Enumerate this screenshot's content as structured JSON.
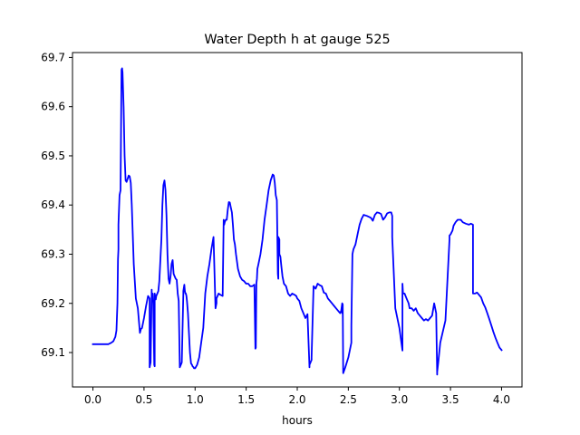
{
  "chart_data": {
    "type": "line",
    "title": "Water Depth h at gauge 525",
    "xlabel": "hours",
    "ylabel": "",
    "xlim": [
      -0.2,
      4.2
    ],
    "ylim": [
      69.03,
      69.71
    ],
    "xticks": [
      0.0,
      0.5,
      1.0,
      1.5,
      2.0,
      2.5,
      3.0,
      3.5,
      4.0
    ],
    "xtick_labels": [
      "0.0",
      "0.5",
      "1.0",
      "1.5",
      "2.0",
      "2.5",
      "3.0",
      "3.5",
      "4.0"
    ],
    "yticks": [
      69.1,
      69.2,
      69.3,
      69.4,
      69.5,
      69.6,
      69.7
    ],
    "ytick_labels": [
      "69.1",
      "69.2",
      "69.3",
      "69.4",
      "69.5",
      "69.6",
      "69.7"
    ],
    "grid": false,
    "series": [
      {
        "color": "#0000ff",
        "x": [
          0.0,
          0.1,
          0.15,
          0.18,
          0.2,
          0.22,
          0.23,
          0.24,
          0.245,
          0.25,
          0.25,
          0.26,
          0.27,
          0.28,
          0.285,
          0.29,
          0.3,
          0.31,
          0.32,
          0.33,
          0.35,
          0.36,
          0.37,
          0.38,
          0.4,
          0.42,
          0.44,
          0.46,
          0.47,
          0.48,
          0.49,
          0.5,
          0.52,
          0.54,
          0.555,
          0.555,
          0.565,
          0.575,
          0.575,
          0.585,
          0.59,
          0.6,
          0.605,
          0.605,
          0.615,
          0.62,
          0.63,
          0.64,
          0.65,
          0.67,
          0.68,
          0.69,
          0.7,
          0.71,
          0.72,
          0.73,
          0.74,
          0.75,
          0.76,
          0.77,
          0.78,
          0.79,
          0.8,
          0.81,
          0.82,
          0.83,
          0.84,
          0.85,
          0.86,
          0.87,
          0.885,
          0.885,
          0.895,
          0.9,
          0.905,
          0.91,
          0.915,
          0.92,
          0.93,
          0.94,
          0.95,
          0.96,
          0.97,
          0.975,
          0.985,
          0.99,
          1.0,
          1.02,
          1.04,
          1.06,
          1.08,
          1.1,
          1.12,
          1.14,
          1.16,
          1.18,
          1.2,
          1.21,
          1.21,
          1.22,
          1.23,
          1.25,
          1.27,
          1.28,
          1.285,
          1.29,
          1.3,
          1.31,
          1.32,
          1.33,
          1.34,
          1.35,
          1.36,
          1.37,
          1.38,
          1.39,
          1.4,
          1.42,
          1.44,
          1.46,
          1.48,
          1.5,
          1.52,
          1.54,
          1.56,
          1.58,
          1.59,
          1.595,
          1.6,
          1.605,
          1.61,
          1.62,
          1.64,
          1.66,
          1.68,
          1.7,
          1.72,
          1.74,
          1.76,
          1.77,
          1.78,
          1.79,
          1.8,
          1.81,
          1.815,
          1.815,
          1.825,
          1.825,
          1.835,
          1.845,
          1.855,
          1.87,
          1.89,
          1.91,
          1.93,
          1.95,
          1.97,
          1.99,
          2.0,
          2.02,
          2.04,
          2.06,
          2.08,
          2.1,
          2.12,
          2.12,
          2.14,
          2.14,
          2.16,
          2.18,
          2.2,
          2.22,
          2.24,
          2.26,
          2.28,
          2.3,
          2.32,
          2.34,
          2.36,
          2.38,
          2.4,
          2.42,
          2.43,
          2.44,
          2.44,
          2.445,
          2.45,
          2.47,
          2.5,
          2.53,
          2.53,
          2.54,
          2.55,
          2.57,
          2.59,
          2.61,
          2.63,
          2.65,
          2.68,
          2.7,
          2.72,
          2.74,
          2.76,
          2.78,
          2.8,
          2.82,
          2.84,
          2.86,
          2.88,
          2.9,
          2.92,
          2.93,
          2.93,
          2.96,
          3.0,
          3.03,
          3.03,
          3.035,
          3.05,
          3.07,
          3.09,
          3.1,
          3.12,
          3.14,
          3.16,
          3.18,
          3.2,
          3.22,
          3.24,
          3.26,
          3.28,
          3.3,
          3.32,
          3.34,
          3.36,
          3.37,
          3.37,
          3.38,
          3.4,
          3.45,
          3.49,
          3.49,
          3.5,
          3.52,
          3.53,
          3.55,
          3.57,
          3.6,
          3.62,
          3.65,
          3.68,
          3.7,
          3.72,
          3.72,
          3.74,
          3.76,
          3.78,
          3.8,
          3.82,
          3.84,
          3.86,
          3.88,
          3.9,
          3.92,
          3.94,
          3.96,
          3.98,
          4.0
        ],
        "y": [
          69.117,
          69.117,
          69.117,
          69.12,
          69.123,
          69.132,
          69.145,
          69.2,
          69.29,
          69.31,
          69.36,
          69.42,
          69.43,
          69.675,
          69.678,
          69.67,
          69.6,
          69.5,
          69.45,
          69.447,
          69.46,
          69.458,
          69.445,
          69.4,
          69.28,
          69.21,
          69.19,
          69.14,
          69.148,
          69.15,
          69.16,
          69.17,
          69.195,
          69.215,
          69.21,
          69.07,
          69.08,
          69.228,
          69.22,
          69.22,
          69.2,
          69.075,
          69.072,
          69.22,
          69.208,
          69.215,
          69.22,
          69.225,
          69.245,
          69.33,
          69.4,
          69.44,
          69.45,
          69.43,
          69.38,
          69.3,
          69.25,
          69.24,
          69.255,
          69.28,
          69.288,
          69.26,
          69.255,
          69.25,
          69.248,
          69.22,
          69.205,
          69.07,
          69.075,
          69.08,
          69.22,
          69.225,
          69.238,
          69.225,
          69.22,
          69.22,
          69.215,
          69.205,
          69.18,
          69.14,
          69.1,
          69.078,
          69.075,
          69.072,
          69.07,
          69.068,
          69.068,
          69.075,
          69.09,
          69.12,
          69.15,
          69.22,
          69.255,
          69.28,
          69.31,
          69.335,
          69.19,
          69.2,
          69.21,
          69.215,
          69.22,
          69.217,
          69.215,
          69.37,
          69.36,
          69.365,
          69.37,
          69.37,
          69.39,
          69.406,
          69.405,
          69.395,
          69.385,
          69.36,
          69.33,
          69.32,
          69.3,
          69.27,
          69.255,
          69.248,
          69.245,
          69.24,
          69.24,
          69.235,
          69.235,
          69.238,
          69.108,
          69.11,
          69.24,
          69.25,
          69.27,
          69.28,
          69.3,
          69.33,
          69.37,
          69.4,
          69.43,
          69.45,
          69.462,
          69.46,
          69.445,
          69.42,
          69.41,
          69.26,
          69.25,
          69.335,
          69.33,
          69.3,
          69.295,
          69.275,
          69.255,
          69.24,
          69.235,
          69.22,
          69.215,
          69.22,
          69.218,
          69.215,
          69.21,
          69.205,
          69.19,
          69.18,
          69.17,
          69.178,
          69.07,
          69.075,
          69.085,
          69.09,
          69.235,
          69.23,
          69.24,
          69.237,
          69.235,
          69.222,
          69.22,
          69.21,
          69.205,
          69.2,
          69.195,
          69.19,
          69.185,
          69.18,
          69.185,
          69.2,
          69.18,
          69.198,
          69.058,
          69.07,
          69.09,
          69.12,
          69.155,
          69.3,
          69.31,
          69.32,
          69.34,
          69.36,
          69.372,
          69.38,
          69.378,
          69.376,
          69.374,
          69.368,
          69.38,
          69.385,
          69.384,
          69.382,
          69.37,
          69.375,
          69.383,
          69.385,
          69.385,
          69.378,
          69.335,
          69.19,
          69.15,
          69.104,
          69.24,
          69.22,
          69.22,
          69.21,
          69.2,
          69.19,
          69.19,
          69.185,
          69.19,
          69.18,
          69.175,
          69.17,
          69.165,
          69.168,
          69.165,
          69.17,
          69.175,
          69.2,
          69.18,
          69.055,
          69.06,
          69.08,
          69.12,
          69.165,
          69.33,
          69.338,
          69.34,
          69.348,
          69.358,
          69.365,
          69.37,
          69.37,
          69.365,
          69.362,
          69.36,
          69.362,
          69.36,
          69.22,
          69.22,
          69.222,
          69.217,
          69.212,
          69.2,
          69.192,
          69.18,
          69.168,
          69.155,
          69.142,
          69.13,
          69.12,
          69.11,
          69.105
        ]
      }
    ]
  }
}
